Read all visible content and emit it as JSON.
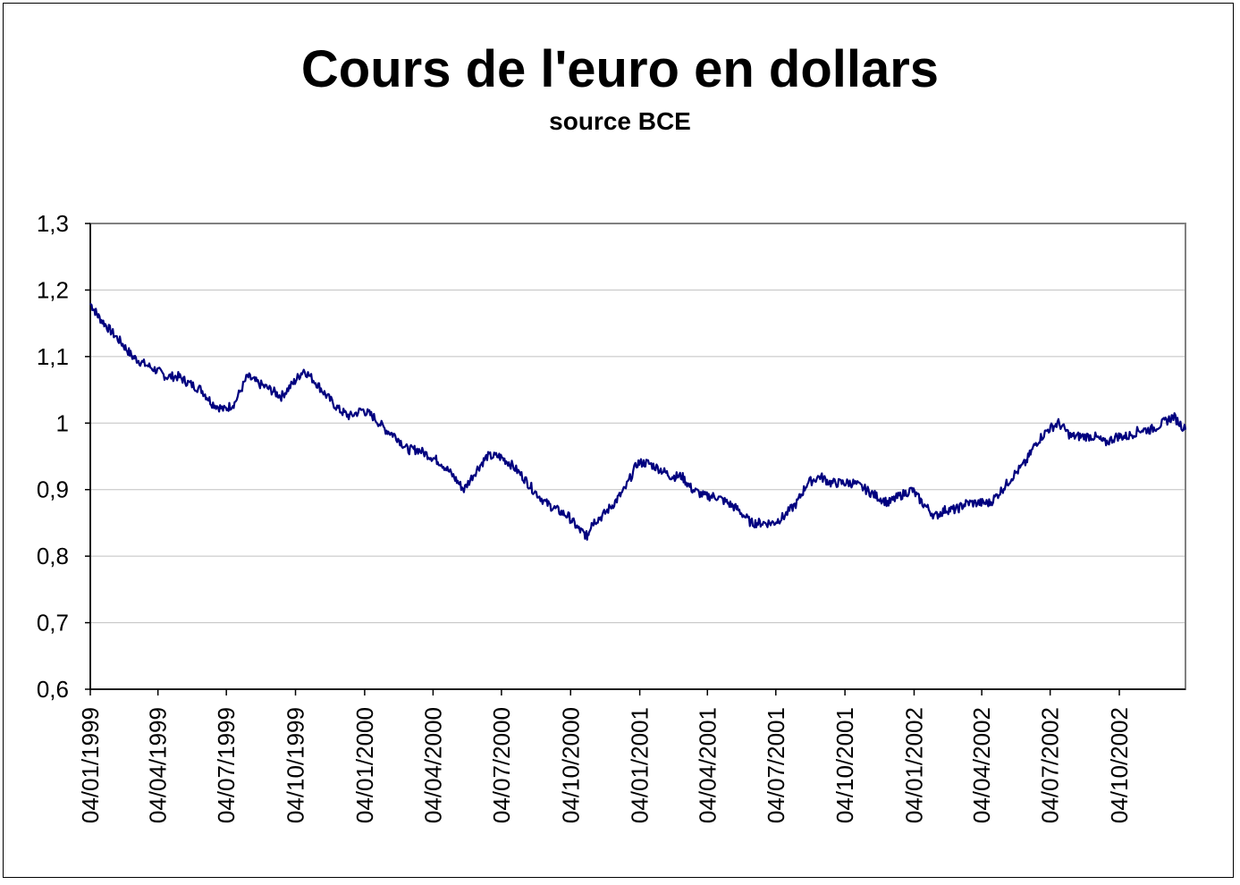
{
  "chart_data": {
    "type": "line",
    "title": "Cours de l'euro en dollars",
    "subtitle": "source BCE",
    "xlabel": "",
    "ylabel": "",
    "ylim": [
      0.6,
      1.3
    ],
    "yticks": [
      "0,6",
      "0,7",
      "0,8",
      "0,9",
      "1",
      "1,1",
      "1,2",
      "1,3"
    ],
    "xlim": [
      "04/01/1999",
      "31/12/2002"
    ],
    "xticks": [
      "04/01/1999",
      "04/04/1999",
      "04/07/1999",
      "04/10/1999",
      "04/01/2000",
      "04/04/2000",
      "04/07/2000",
      "04/10/2000",
      "04/01/2001",
      "04/04/2001",
      "04/07/2001",
      "04/10/2001",
      "04/01/2002",
      "04/04/2002",
      "04/07/2002",
      "04/10/2002"
    ],
    "grid": true,
    "colors": {
      "line": "#00007f",
      "grid": "#c0c0c0",
      "plot_border": "#808080"
    },
    "series": [
      {
        "x": [
          "1999-01-04",
          "1999-01-15",
          "1999-01-30",
          "1999-02-15",
          "1999-03-01",
          "1999-03-15",
          "1999-04-01",
          "1999-04-15",
          "1999-05-01",
          "1999-05-15",
          "1999-06-01",
          "1999-06-15",
          "1999-07-01",
          "1999-07-15",
          "1999-08-01",
          "1999-08-15",
          "1999-09-01",
          "1999-09-15",
          "1999-10-01",
          "1999-10-15",
          "1999-11-01",
          "1999-11-15",
          "1999-12-01",
          "1999-12-15",
          "2000-01-01",
          "2000-01-15",
          "2000-02-01",
          "2000-02-15",
          "2000-03-01",
          "2000-03-15",
          "2000-04-01",
          "2000-04-15",
          "2000-05-01",
          "2000-05-15",
          "2000-06-01",
          "2000-06-15",
          "2000-07-01",
          "2000-07-15",
          "2000-08-01",
          "2000-08-15",
          "2000-09-01",
          "2000-09-15",
          "2000-10-01",
          "2000-10-15",
          "2000-10-26",
          "2000-11-01",
          "2000-11-15",
          "2000-12-01",
          "2000-12-15",
          "2001-01-01",
          "2001-01-15",
          "2001-02-01",
          "2001-02-15",
          "2001-03-01",
          "2001-03-15",
          "2001-04-01",
          "2001-04-15",
          "2001-05-01",
          "2001-05-15",
          "2001-06-01",
          "2001-06-15",
          "2001-07-01",
          "2001-07-15",
          "2001-08-01",
          "2001-08-15",
          "2001-09-01",
          "2001-09-15",
          "2001-10-01",
          "2001-10-15",
          "2001-11-01",
          "2001-11-15",
          "2001-12-01",
          "2001-12-15",
          "2002-01-01",
          "2002-01-15",
          "2002-02-01",
          "2002-02-15",
          "2002-03-01",
          "2002-03-15",
          "2002-04-01",
          "2002-04-15",
          "2002-05-01",
          "2002-05-15",
          "2002-06-01",
          "2002-06-15",
          "2002-07-01",
          "2002-07-15",
          "2002-08-01",
          "2002-08-15",
          "2002-09-01",
          "2002-09-15",
          "2002-10-01",
          "2002-10-15",
          "2002-11-01",
          "2002-11-15",
          "2002-12-01",
          "2002-12-15",
          "2002-12-31"
        ],
        "y": [
          1.18,
          1.16,
          1.14,
          1.12,
          1.1,
          1.09,
          1.08,
          1.07,
          1.07,
          1.06,
          1.05,
          1.03,
          1.02,
          1.03,
          1.07,
          1.06,
          1.05,
          1.04,
          1.06,
          1.08,
          1.06,
          1.04,
          1.02,
          1.01,
          1.02,
          1.01,
          0.99,
          0.98,
          0.96,
          0.96,
          0.95,
          0.94,
          0.92,
          0.9,
          0.93,
          0.95,
          0.95,
          0.94,
          0.92,
          0.9,
          0.88,
          0.87,
          0.86,
          0.84,
          0.83,
          0.85,
          0.86,
          0.88,
          0.9,
          0.94,
          0.94,
          0.93,
          0.92,
          0.92,
          0.9,
          0.89,
          0.89,
          0.88,
          0.87,
          0.85,
          0.85,
          0.85,
          0.86,
          0.88,
          0.91,
          0.92,
          0.91,
          0.91,
          0.91,
          0.9,
          0.89,
          0.88,
          0.89,
          0.9,
          0.88,
          0.86,
          0.87,
          0.87,
          0.88,
          0.88,
          0.88,
          0.9,
          0.92,
          0.94,
          0.97,
          0.99,
          1.0,
          0.98,
          0.98,
          0.98,
          0.97,
          0.98,
          0.98,
          0.99,
          0.99,
          1.0,
          1.01,
          0.99
        ]
      }
    ]
  }
}
